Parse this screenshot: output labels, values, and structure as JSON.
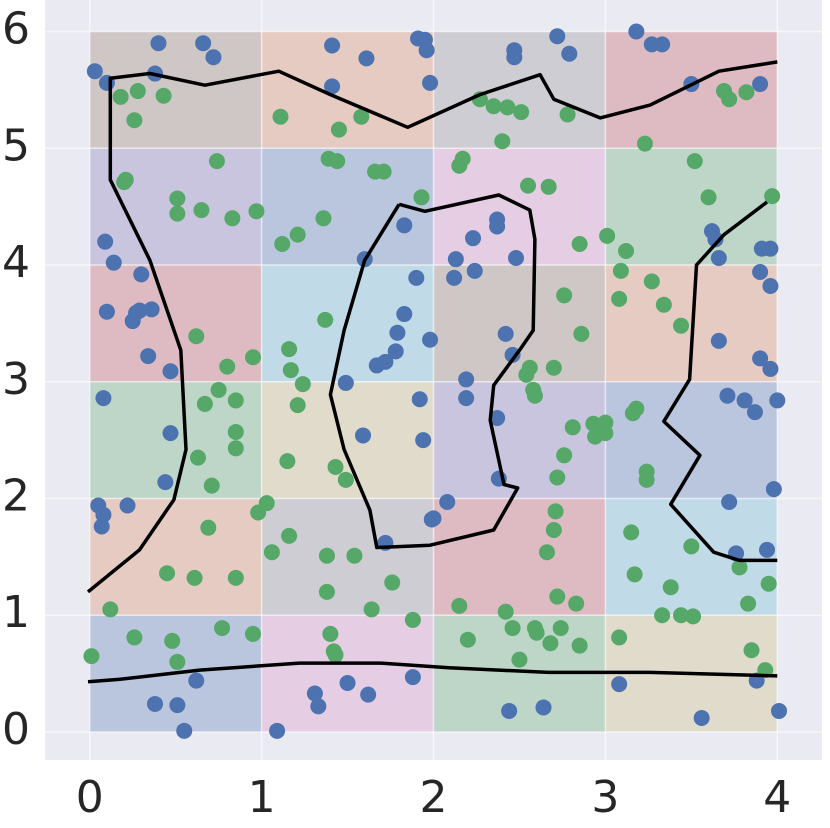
{
  "chart_data": {
    "type": "scatter",
    "xlim": [
      -0.26,
      4.26
    ],
    "ylim": [
      -0.24,
      6.27
    ],
    "xticks": [
      0,
      1,
      2,
      3,
      4
    ],
    "yticks": [
      0,
      1,
      2,
      3,
      4,
      5,
      6
    ],
    "grid": true,
    "cells": {
      "xedges": [
        0,
        1,
        2,
        3,
        4
      ],
      "yedges": [
        0,
        1,
        2,
        3,
        4,
        5,
        6
      ],
      "colors": [
        [
          "#4c72b0",
          "#da8bc3",
          "#55a868",
          "#ccb974"
        ],
        [
          "#dd8452",
          "#8c8c8c",
          "#c44e52",
          "#64b5cd"
        ],
        [
          "#55a868",
          "#ccb974",
          "#8172b3",
          "#4c72b0"
        ],
        [
          "#c44e52",
          "#64b5cd",
          "#937860",
          "#dd8452"
        ],
        [
          "#8172b3",
          "#4c72b0",
          "#da8bc3",
          "#55a868"
        ],
        [
          "#937860",
          "#dd8452",
          "#8c8c8c",
          "#c44e52"
        ]
      ]
    },
    "series": [
      {
        "color": "#4c72b0",
        "x": [
          0.03,
          0.1,
          0.4,
          0.66,
          0.72,
          0.38,
          1.41,
          1.61,
          1.91,
          1.95,
          1.96,
          1.98,
          1.41,
          2.47,
          2.47,
          2.72,
          2.79,
          3.18,
          3.27,
          3.33,
          3.5,
          3.9,
          0.09,
          0.14,
          0.3,
          0.1,
          0.25,
          0.29,
          0.36,
          0.27,
          0.34,
          0.47,
          0.08,
          0.47,
          0.44,
          0.05,
          0.08,
          0.07,
          0.22,
          1.83,
          1.6,
          1.9,
          1.83,
          1.79,
          1.78,
          1.72,
          1.67,
          1.98,
          1.49,
          1.92,
          1.59,
          1.94,
          1.72,
          1.99,
          2.37,
          2.37,
          2.23,
          2.13,
          2.24,
          2.12,
          2.48,
          2.42,
          2.46,
          2.19,
          2.19,
          2.37,
          2.38,
          2.08,
          2.0,
          3.62,
          3.64,
          3.66,
          3.91,
          3.96,
          3.9,
          3.96,
          3.66,
          3.9,
          3.96,
          3.71,
          3.81,
          3.87,
          4.0,
          3.72,
          3.98,
          3.76,
          3.94,
          0.38,
          0.51,
          0.55,
          0.62,
          1.09,
          1.31,
          1.33,
          1.5,
          1.62,
          1.88,
          2.44,
          2.64,
          3.08,
          3.56,
          3.88,
          4.01
        ],
        "y": [
          5.66,
          5.56,
          5.9,
          5.9,
          5.78,
          5.64,
          5.88,
          5.77,
          5.94,
          5.93,
          5.84,
          5.56,
          5.53,
          5.84,
          5.78,
          5.96,
          5.81,
          6.0,
          5.89,
          5.89,
          5.55,
          5.55,
          4.2,
          4.02,
          3.92,
          3.6,
          3.52,
          3.61,
          3.62,
          3.59,
          3.22,
          3.09,
          2.86,
          2.56,
          2.14,
          1.94,
          1.86,
          1.76,
          1.94,
          4.34,
          4.05,
          3.89,
          3.58,
          3.42,
          3.26,
          3.17,
          3.14,
          3.36,
          2.99,
          2.85,
          2.54,
          2.5,
          1.62,
          1.82,
          4.39,
          4.33,
          4.23,
          4.05,
          3.95,
          3.89,
          4.06,
          3.41,
          3.23,
          3.02,
          2.86,
          2.69,
          2.17,
          1.97,
          1.83,
          4.29,
          4.22,
          4.06,
          4.14,
          4.14,
          3.94,
          3.82,
          3.35,
          3.2,
          3.11,
          2.88,
          2.84,
          2.74,
          2.84,
          1.97,
          2.08,
          1.53,
          1.56,
          0.24,
          0.23,
          0.01,
          0.44,
          0.01,
          0.33,
          0.22,
          0.42,
          0.32,
          0.47,
          0.18,
          0.21,
          0.41,
          0.12,
          0.44,
          0.18
        ]
      },
      {
        "color": "#55a868",
        "x": [
          0.18,
          0.28,
          0.43,
          0.26,
          1.11,
          1.45,
          1.58,
          2.27,
          2.35,
          2.43,
          2.51,
          2.4,
          2.78,
          3.23,
          3.69,
          3.72,
          3.82,
          0.21,
          0.2,
          0.74,
          0.51,
          0.51,
          0.65,
          0.83,
          0.97,
          1.12,
          1.21,
          1.36,
          1.39,
          1.44,
          1.66,
          1.71,
          1.93,
          2.15,
          2.17,
          2.55,
          2.67,
          2.85,
          3.01,
          3.12,
          3.52,
          3.6,
          3.97,
          3.09,
          3.27,
          3.08,
          3.34,
          3.44,
          2.76,
          2.86,
          2.7,
          2.56,
          2.54,
          2.58,
          2.59,
          0.62,
          0.8,
          0.95,
          1.16,
          1.17,
          1.37,
          1.24,
          1.21,
          0.75,
          0.67,
          0.85,
          0.85,
          0.85,
          0.63,
          0.71,
          1.15,
          1.43,
          1.49,
          1.03,
          0.98,
          0.69,
          1.16,
          1.06,
          1.38,
          1.54,
          1.76,
          1.38,
          1.64,
          1.88,
          0.45,
          0.61,
          0.85,
          0.12,
          2.81,
          2.76,
          2.72,
          2.71,
          2.7,
          2.66,
          2.93,
          3.0,
          3.0,
          2.94,
          3.16,
          3.18,
          3.24,
          3.24,
          3.15,
          3.17,
          3.5,
          3.38,
          3.78,
          3.95,
          3.83,
          3.33,
          3.44,
          3.51,
          3.08,
          3.85,
          3.93,
          2.72,
          2.83,
          2.15,
          2.42,
          2.46,
          2.59,
          2.6,
          2.74,
          2.2,
          2.68,
          2.85,
          2.5,
          0.01,
          0.26,
          0.48,
          0.51,
          0.77,
          0.95,
          1.4,
          1.42,
          1.43
        ],
        "y": [
          5.44,
          5.49,
          5.45,
          5.24,
          5.27,
          5.16,
          5.27,
          5.42,
          5.36,
          5.35,
          5.31,
          5.06,
          5.29,
          5.04,
          5.49,
          5.42,
          5.48,
          4.73,
          4.71,
          4.89,
          4.57,
          4.44,
          4.47,
          4.4,
          4.46,
          4.18,
          4.26,
          4.4,
          4.91,
          4.89,
          4.8,
          4.8,
          4.58,
          4.85,
          4.91,
          4.68,
          4.67,
          4.18,
          4.25,
          4.12,
          4.89,
          4.58,
          4.59,
          3.95,
          3.86,
          3.71,
          3.66,
          3.48,
          3.74,
          3.41,
          3.12,
          3.12,
          3.06,
          2.93,
          2.88,
          3.39,
          3.13,
          3.21,
          3.28,
          3.1,
          3.53,
          2.98,
          2.8,
          2.93,
          2.81,
          2.84,
          2.57,
          2.43,
          2.35,
          2.11,
          2.32,
          2.27,
          2.16,
          1.96,
          1.88,
          1.75,
          1.68,
          1.54,
          1.51,
          1.51,
          1.28,
          1.2,
          1.05,
          0.96,
          1.36,
          1.32,
          1.32,
          1.05,
          2.61,
          2.37,
          2.18,
          1.89,
          1.73,
          1.54,
          2.64,
          2.56,
          2.65,
          2.53,
          2.73,
          2.77,
          2.23,
          2.16,
          1.71,
          1.35,
          1.59,
          1.24,
          1.41,
          1.27,
          1.1,
          1.0,
          1.0,
          0.99,
          0.81,
          0.7,
          0.53,
          1.16,
          1.1,
          1.08,
          1.03,
          0.89,
          0.89,
          0.85,
          0.89,
          0.79,
          0.76,
          0.74,
          0.62,
          0.65,
          0.81,
          0.78,
          0.6,
          0.89,
          0.84,
          0.84,
          0.69,
          0.66
        ]
      }
    ],
    "lines": [
      {
        "color": "#000000",
        "x": [
          -0.01,
          0.29,
          0.49,
          0.56,
          0.53,
          0.35,
          0.12,
          0.12,
          0.35,
          0.67,
          1.1,
          1.4,
          1.85,
          2.27,
          2.62,
          2.7,
          2.97,
          3.26,
          3.66,
          4.0
        ],
        "y": [
          1.2,
          1.56,
          1.99,
          2.42,
          3.27,
          4.04,
          4.73,
          5.6,
          5.64,
          5.54,
          5.66,
          5.46,
          5.18,
          5.46,
          5.63,
          5.42,
          5.26,
          5.37,
          5.66,
          5.74
        ]
      },
      {
        "color": "#000000",
        "x": [
          1.8,
          1.95,
          2.38,
          2.56,
          2.59,
          2.58,
          2.5,
          2.35,
          2.33,
          2.41,
          2.49,
          2.35,
          1.98,
          1.67,
          1.63,
          1.48,
          1.4,
          1.48,
          1.6,
          1.8
        ],
        "y": [
          4.52,
          4.46,
          4.6,
          4.47,
          4.22,
          3.44,
          3.27,
          2.97,
          2.67,
          2.12,
          2.09,
          1.73,
          1.6,
          1.58,
          1.9,
          2.42,
          2.89,
          3.44,
          4.04,
          4.52
        ]
      },
      {
        "color": "#000000",
        "x": [
          3.94,
          3.69,
          3.53,
          3.49,
          3.34,
          3.55,
          3.38,
          3.63,
          3.78,
          4.0
        ],
        "y": [
          4.54,
          4.26,
          4.0,
          3.02,
          2.66,
          2.37,
          1.95,
          1.54,
          1.47,
          1.47
        ]
      },
      {
        "color": "#000000",
        "x": [
          -0.01,
          0.17,
          0.64,
          1.22,
          1.69,
          2.09,
          2.67,
          3.26,
          4.0
        ],
        "y": [
          0.43,
          0.45,
          0.53,
          0.59,
          0.59,
          0.55,
          0.51,
          0.51,
          0.48
        ]
      }
    ]
  }
}
